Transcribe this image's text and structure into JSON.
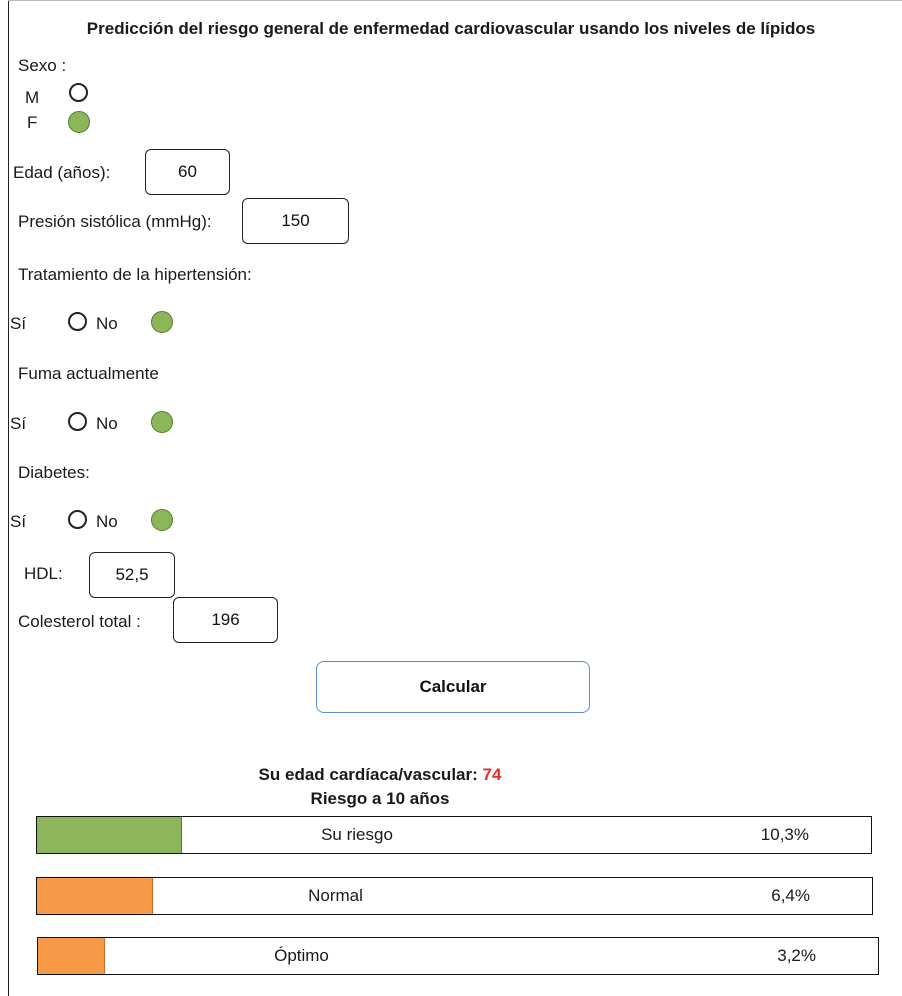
{
  "title": "Predicción del riesgo general de enfermedad cardiovascular usando los niveles de lípidos",
  "sex": {
    "label": "Sexo :",
    "options": [
      "M",
      "F"
    ],
    "selected": "F"
  },
  "age": {
    "label": "Edad (años):",
    "value": "60"
  },
  "systolic": {
    "label": "Presión sistólica (mmHg):",
    "value": "150"
  },
  "hypertension": {
    "label": "Tratamiento de la hipertensión:",
    "yes": "Sí",
    "no": "No",
    "selected": "No"
  },
  "smoker": {
    "label": "Fuma actualmente",
    "yes": "Sí",
    "no": "No",
    "selected": "No"
  },
  "diabetes": {
    "label": "Diabetes:",
    "yes": "Sí",
    "no": "No",
    "selected": "No"
  },
  "hdl": {
    "label": "HDL:",
    "value": "52,5"
  },
  "cholesterol": {
    "label": "Colesterol total :",
    "value": "196"
  },
  "calculate_label": "Calcular",
  "result": {
    "heart_age_label": "Su edad cardíaca/vascular:",
    "heart_age_value": "74",
    "risk_title": "Riesgo a 10 años",
    "bars": [
      {
        "label": "Su riesgo",
        "percent_text": "10,3%",
        "fill_fraction": 0.173,
        "color": "#8db65a"
      },
      {
        "label": "Normal",
        "percent_text": "6,4%",
        "fill_fraction": 0.138,
        "color": "#f79a48"
      },
      {
        "label": "Óptimo",
        "percent_text": "3,2%",
        "fill_fraction": 0.078,
        "color": "#f79a48"
      }
    ]
  },
  "colors": {
    "selected_radio": "#8db65a",
    "button_border": "#5b8fc9",
    "heart_age_value": "#e03030"
  }
}
